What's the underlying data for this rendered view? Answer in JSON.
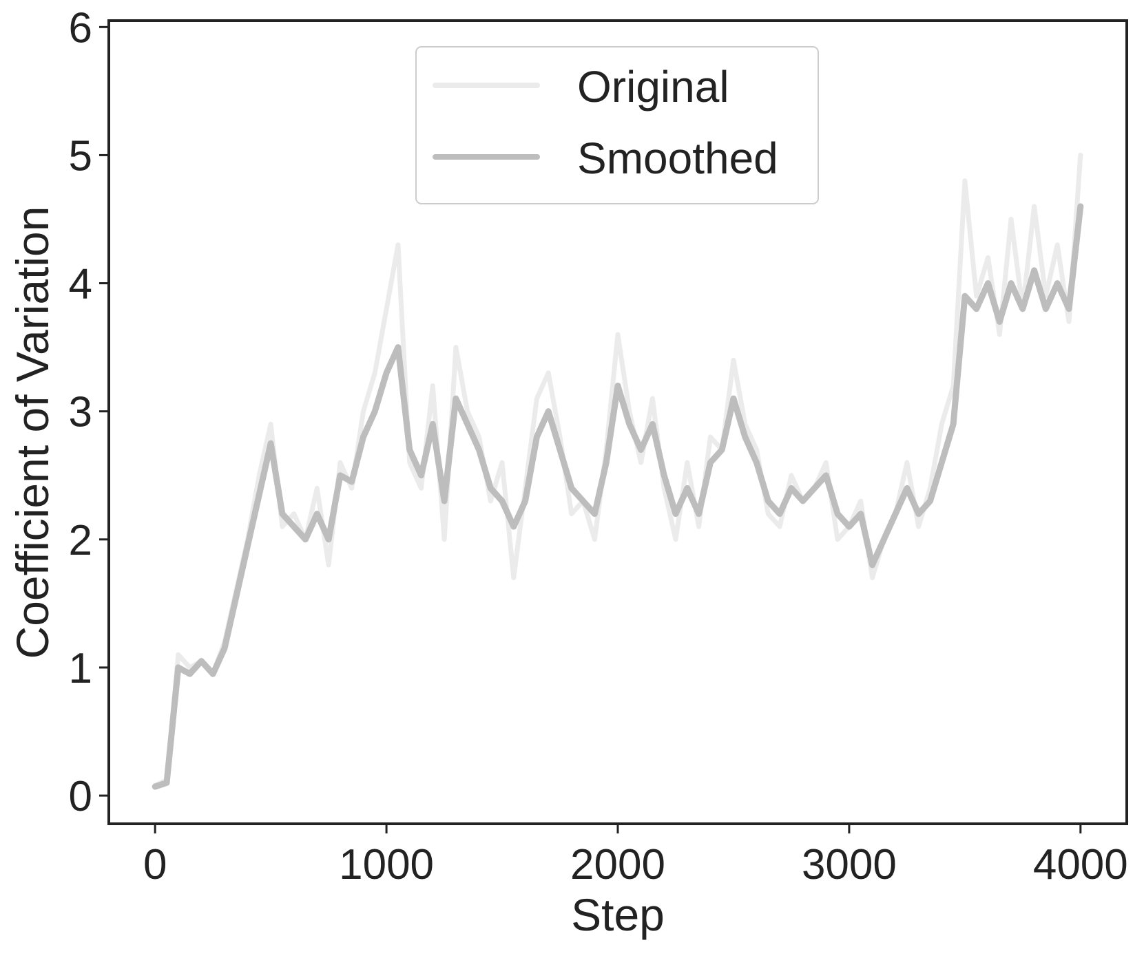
{
  "colors": {
    "original": "#ebebeb",
    "smoothed": "#bdbdbd",
    "axis": "#222222",
    "legend_border": "#cccccc",
    "background": "#ffffff"
  },
  "chart_data": {
    "type": "line",
    "xlabel": "Step",
    "ylabel": "Coefficient of Variation",
    "xlim": [
      -200,
      4200
    ],
    "ylim": [
      -0.22,
      6.05
    ],
    "xticks": [
      0,
      1000,
      2000,
      3000,
      4000
    ],
    "xtick_labels": [
      "0",
      "1000",
      "2000",
      "3000",
      "4000"
    ],
    "yticks": [
      0,
      1,
      2,
      3,
      4,
      5,
      6
    ],
    "ytick_labels": [
      "0",
      "1",
      "2",
      "3",
      "4",
      "5",
      "6"
    ],
    "grid": false,
    "legend_position": "upper-center",
    "series": [
      {
        "name": "Original",
        "key": "original",
        "x": [
          0,
          50,
          100,
          150,
          200,
          250,
          300,
          350,
          400,
          450,
          500,
          550,
          600,
          650,
          700,
          750,
          800,
          850,
          900,
          950,
          1000,
          1050,
          1100,
          1150,
          1200,
          1250,
          1300,
          1350,
          1400,
          1450,
          1500,
          1550,
          1600,
          1650,
          1700,
          1750,
          1800,
          1850,
          1900,
          1950,
          2000,
          2050,
          2100,
          2150,
          2200,
          2250,
          2300,
          2350,
          2400,
          2450,
          2500,
          2550,
          2600,
          2650,
          2700,
          2750,
          2800,
          2850,
          2900,
          2950,
          3000,
          3050,
          3100,
          3150,
          3200,
          3250,
          3300,
          3350,
          3400,
          3450,
          3500,
          3550,
          3600,
          3650,
          3700,
          3750,
          3800,
          3850,
          3900,
          3950,
          4000
        ],
        "y": [
          0.08,
          0.12,
          1.1,
          1.0,
          1.05,
          0.95,
          1.2,
          1.6,
          2.0,
          2.5,
          2.9,
          2.1,
          2.2,
          2.0,
          2.4,
          1.8,
          2.6,
          2.4,
          3.0,
          3.3,
          3.8,
          4.3,
          2.6,
          2.4,
          3.2,
          2.0,
          3.5,
          3.0,
          2.8,
          2.3,
          2.6,
          1.7,
          2.4,
          3.1,
          3.3,
          2.8,
          2.2,
          2.3,
          2.0,
          2.7,
          3.6,
          3.0,
          2.6,
          3.1,
          2.4,
          2.0,
          2.6,
          2.1,
          2.8,
          2.7,
          3.4,
          2.9,
          2.7,
          2.2,
          2.1,
          2.5,
          2.3,
          2.4,
          2.6,
          2.0,
          2.1,
          2.3,
          1.7,
          2.0,
          2.2,
          2.6,
          2.1,
          2.4,
          2.9,
          3.2,
          4.8,
          3.9,
          4.2,
          3.6,
          4.5,
          3.8,
          4.6,
          3.9,
          4.3,
          3.7,
          5.0
        ]
      },
      {
        "name": "Smoothed",
        "key": "smoothed",
        "x": [
          0,
          50,
          100,
          150,
          200,
          250,
          300,
          350,
          400,
          450,
          500,
          550,
          600,
          650,
          700,
          750,
          800,
          850,
          900,
          950,
          1000,
          1050,
          1100,
          1150,
          1200,
          1250,
          1300,
          1350,
          1400,
          1450,
          1500,
          1550,
          1600,
          1650,
          1700,
          1750,
          1800,
          1850,
          1900,
          1950,
          2000,
          2050,
          2100,
          2150,
          2200,
          2250,
          2300,
          2350,
          2400,
          2450,
          2500,
          2550,
          2600,
          2650,
          2700,
          2750,
          2800,
          2850,
          2900,
          2950,
          3000,
          3050,
          3100,
          3150,
          3200,
          3250,
          3300,
          3350,
          3400,
          3450,
          3500,
          3550,
          3600,
          3650,
          3700,
          3750,
          3800,
          3850,
          3900,
          3950,
          4000
        ],
        "y": [
          0.07,
          0.1,
          1.0,
          0.95,
          1.05,
          0.95,
          1.15,
          1.55,
          1.95,
          2.35,
          2.75,
          2.2,
          2.1,
          2.0,
          2.2,
          2.0,
          2.5,
          2.45,
          2.8,
          3.0,
          3.3,
          3.5,
          2.7,
          2.5,
          2.9,
          2.3,
          3.1,
          2.9,
          2.7,
          2.4,
          2.3,
          2.1,
          2.3,
          2.8,
          3.0,
          2.7,
          2.4,
          2.3,
          2.2,
          2.6,
          3.2,
          2.9,
          2.7,
          2.9,
          2.5,
          2.2,
          2.4,
          2.2,
          2.6,
          2.7,
          3.1,
          2.8,
          2.6,
          2.3,
          2.2,
          2.4,
          2.3,
          2.4,
          2.5,
          2.2,
          2.1,
          2.2,
          1.8,
          2.0,
          2.2,
          2.4,
          2.2,
          2.3,
          2.6,
          2.9,
          3.9,
          3.8,
          4.0,
          3.7,
          4.0,
          3.8,
          4.1,
          3.8,
          4.0,
          3.8,
          4.6
        ]
      }
    ]
  }
}
